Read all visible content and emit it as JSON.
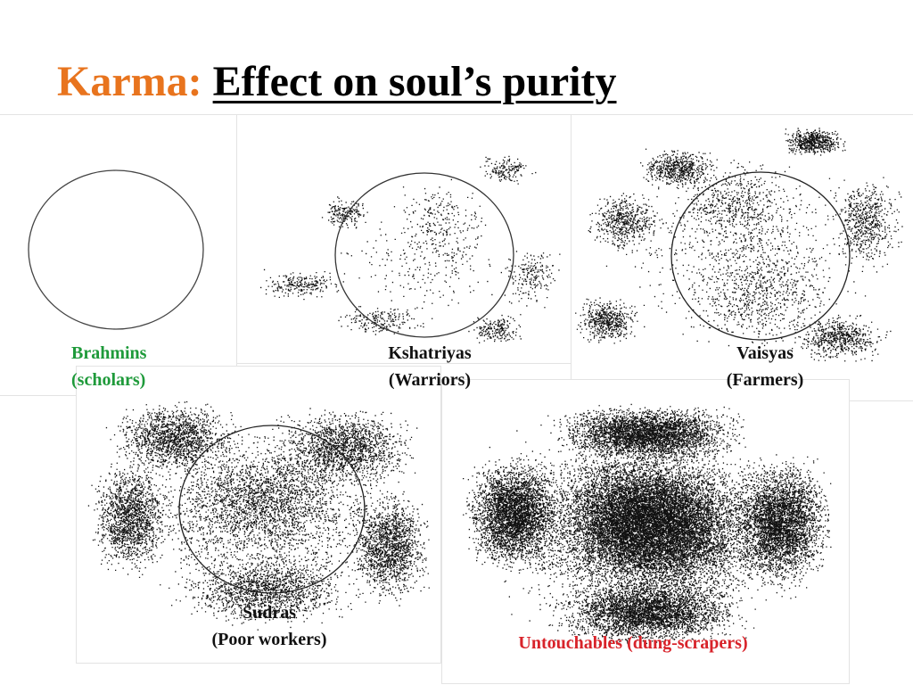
{
  "title": {
    "prefix": "Karma:",
    "main": "Effect on soul’s purity"
  },
  "colors": {
    "prefix": "#e8741e",
    "brahmins": "#1e9a3a",
    "untouchables": "#d8232a"
  },
  "castes": [
    {
      "name": "Brahmins",
      "role": "(scholars)",
      "impurity_level": 0
    },
    {
      "name": "Kshatriyas",
      "role": "(Warriors)",
      "impurity_level": 1
    },
    {
      "name": "Vaisyas",
      "role": "(Farmers)",
      "impurity_level": 2
    },
    {
      "name": "Sudras",
      "role": "(Poor workers)",
      "impurity_level": 3
    },
    {
      "name": "Untouchables (dung-scrapers)",
      "role": "",
      "impurity_level": 4
    }
  ]
}
